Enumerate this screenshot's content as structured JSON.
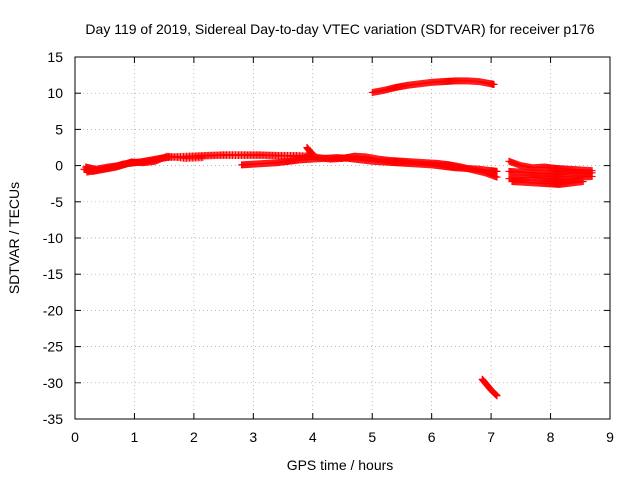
{
  "chart_data": {
    "type": "scatter",
    "title": "Day 119 of 2019, Sidereal Day-to-day VTEC variation (SDTVAR) for receiver p176",
    "xlabel": "GPS time / hours",
    "ylabel": "SDTVAR / TECUs",
    "xlim": [
      0,
      9
    ],
    "ylim": [
      -35,
      15
    ],
    "xticks": [
      0,
      1,
      2,
      3,
      4,
      5,
      6,
      7,
      8,
      9
    ],
    "yticks": [
      15,
      10,
      5,
      0,
      -5,
      -10,
      -15,
      -20,
      -25,
      -30,
      -35
    ],
    "grid": true,
    "marker": "+",
    "color": "#ff0000",
    "tracks": [
      {
        "x": [
          0.15,
          0.3,
          0.5,
          0.7,
          0.9,
          1.1,
          1.3,
          1.5,
          1.8,
          2.1,
          2.4,
          2.7,
          3.0,
          3.3,
          3.6,
          3.9
        ],
        "y": [
          -0.5,
          -0.8,
          -0.5,
          -0.2,
          0.3,
          0.5,
          0.8,
          1.1,
          1.2,
          1.3,
          1.4,
          1.4,
          1.4,
          1.4,
          1.3,
          1.2
        ]
      },
      {
        "x": [
          0.2,
          0.4,
          0.6,
          0.8,
          1.0,
          1.2,
          1.4,
          1.6,
          1.9,
          2.2,
          2.5,
          2.8,
          3.1,
          3.4,
          3.7,
          4.0
        ],
        "y": [
          -0.9,
          -0.6,
          -0.3,
          0.2,
          0.4,
          0.6,
          0.9,
          1.2,
          1.3,
          1.4,
          1.5,
          1.5,
          1.5,
          1.4,
          1.4,
          1.3
        ]
      },
      {
        "x": [
          0.18,
          0.35,
          0.55,
          0.75,
          0.95,
          1.15,
          1.35,
          1.55,
          1.85,
          2.15
        ],
        "y": [
          -0.2,
          -0.5,
          -0.2,
          0.0,
          0.5,
          0.4,
          0.6,
          1.3,
          1.0,
          1.1
        ]
      },
      {
        "x": [
          2.8,
          3.0,
          3.2,
          3.4,
          3.6,
          3.8,
          4.0,
          4.2,
          4.4,
          4.6,
          4.8,
          5.0,
          5.2,
          5.4,
          5.6,
          5.8,
          6.0,
          6.2,
          6.4,
          6.6,
          6.8,
          7.0,
          7.1
        ],
        "y": [
          0.1,
          0.2,
          0.3,
          0.4,
          0.6,
          0.8,
          0.9,
          1.0,
          1.1,
          1.0,
          0.8,
          0.6,
          0.5,
          0.4,
          0.3,
          0.2,
          0.1,
          -0.1,
          -0.3,
          -0.4,
          -0.5,
          -0.7,
          -0.8
        ]
      },
      {
        "x": [
          3.9,
          4.1,
          4.3,
          4.5,
          4.7,
          4.9,
          5.1,
          5.3,
          5.5,
          5.7,
          5.9,
          6.1,
          6.3,
          6.5,
          6.7,
          6.9,
          7.1
        ],
        "y": [
          1.5,
          1.1,
          0.9,
          1.0,
          1.3,
          1.2,
          0.9,
          0.7,
          0.6,
          0.5,
          0.4,
          0.3,
          0.1,
          -0.2,
          -0.6,
          -1.0,
          -1.6
        ]
      },
      {
        "x": [
          3.9,
          3.95,
          4.0
        ],
        "y": [
          2.5,
          2.0,
          1.6
        ]
      },
      {
        "x": [
          5.0,
          5.2,
          5.4,
          5.6,
          5.8,
          6.0,
          6.2,
          6.4,
          6.6,
          6.8,
          7.0,
          7.05
        ],
        "y": [
          10.1,
          10.4,
          10.8,
          11.1,
          11.3,
          11.5,
          11.6,
          11.7,
          11.7,
          11.6,
          11.3,
          11.2
        ]
      },
      {
        "x": [
          6.85,
          6.9,
          6.95,
          7.0,
          7.05,
          7.1
        ],
        "y": [
          -29.5,
          -30.0,
          -30.5,
          -31.0,
          -31.4,
          -31.8
        ]
      },
      {
        "x": [
          7.3,
          7.5,
          7.7,
          7.9,
          8.1,
          8.3,
          8.5,
          8.7
        ],
        "y": [
          0.6,
          0.0,
          -0.3,
          -0.2,
          -0.4,
          -0.5,
          -0.6,
          -0.7
        ]
      },
      {
        "x": [
          7.3,
          7.5,
          7.7,
          7.9,
          8.1,
          8.3,
          8.5,
          8.7
        ],
        "y": [
          -0.8,
          -0.9,
          -1.0,
          -1.1,
          -1.2,
          -1.1,
          -1.0,
          -1.0
        ]
      },
      {
        "x": [
          7.3,
          7.5,
          7.7,
          7.9,
          8.1,
          8.3,
          8.5,
          8.7
        ],
        "y": [
          -1.8,
          -1.7,
          -1.6,
          -1.8,
          -2.0,
          -1.9,
          -1.6,
          -1.5
        ]
      },
      {
        "x": [
          7.35,
          7.55,
          7.75,
          7.95,
          8.15,
          8.35,
          8.55
        ],
        "y": [
          -2.2,
          -2.3,
          -2.4,
          -2.5,
          -2.6,
          -2.4,
          -2.2
        ]
      }
    ]
  }
}
